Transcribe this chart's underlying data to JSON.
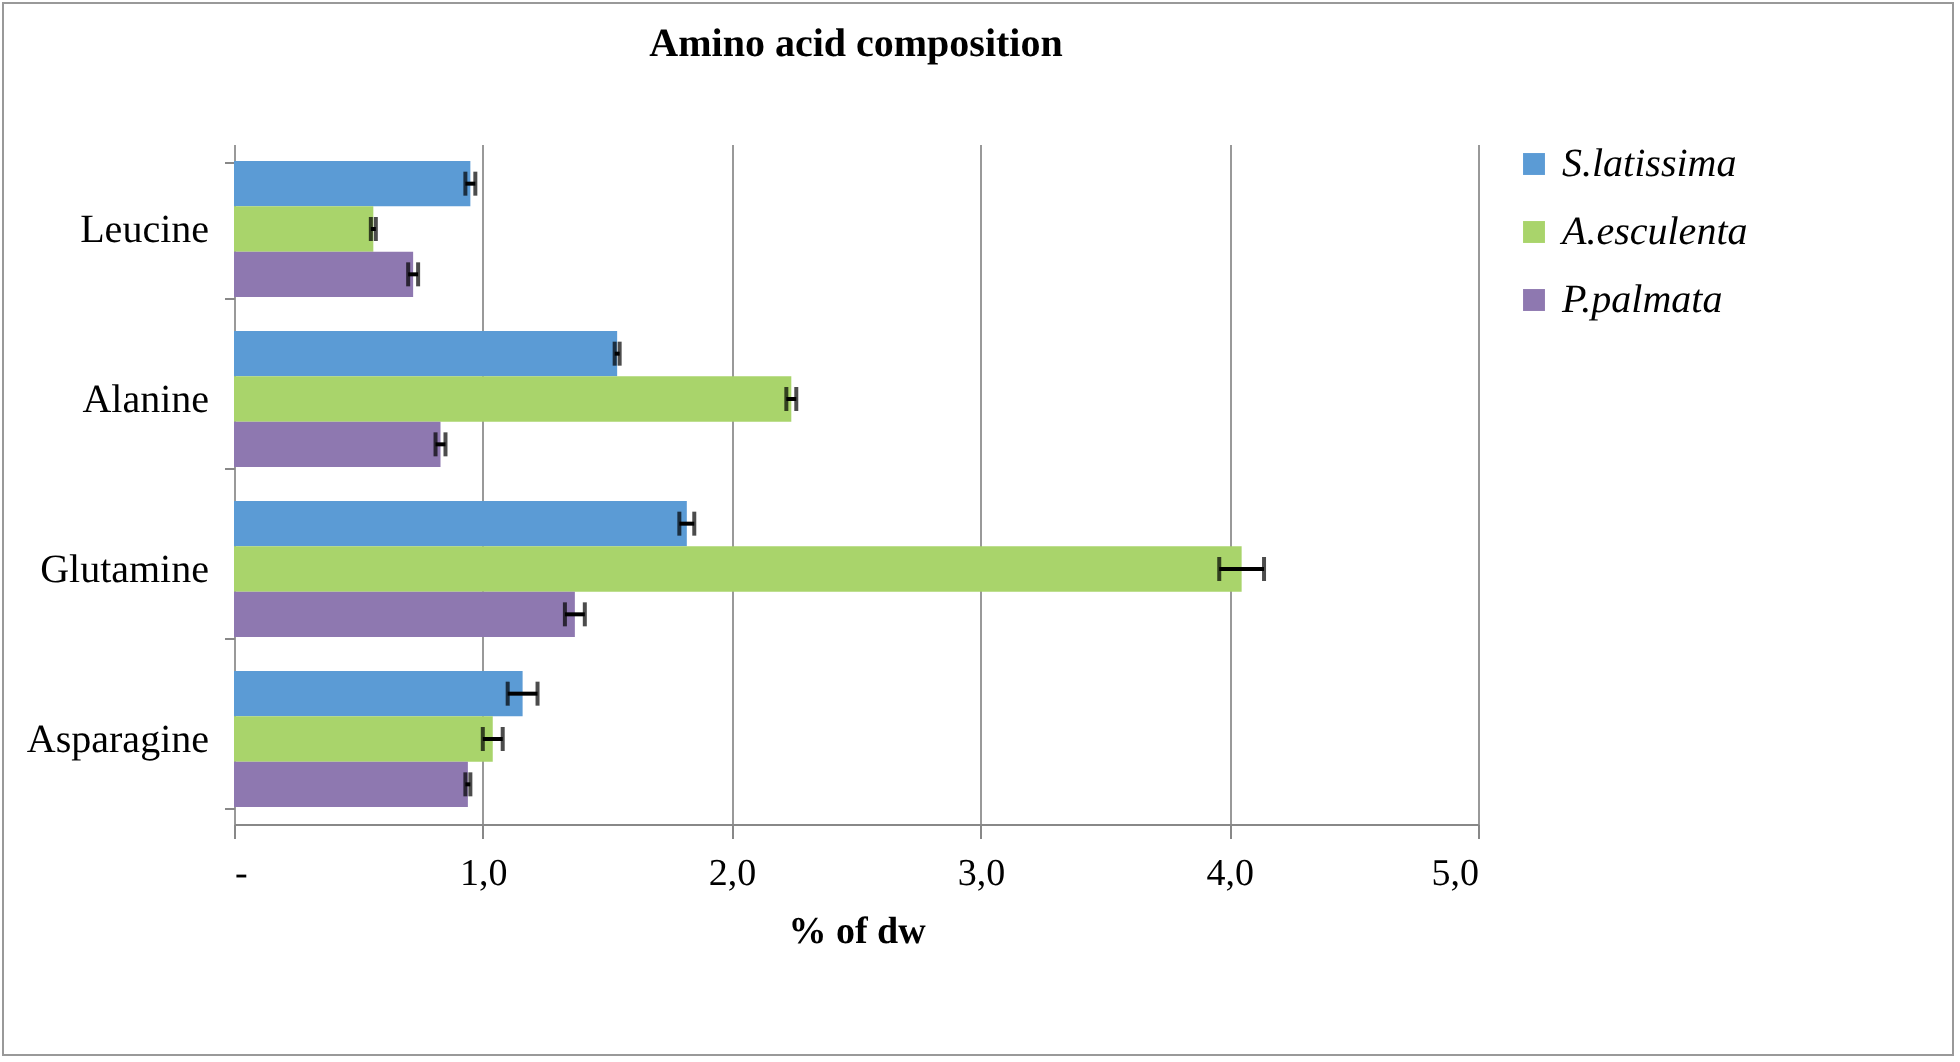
{
  "chart_data": {
    "type": "bar",
    "orientation": "horizontal",
    "title": "Amino acid composition",
    "xlabel": "% of dw",
    "categories": [
      "Leucine",
      "Alanine",
      "Glutamine",
      "Asparagine"
    ],
    "series": [
      {
        "name": "S.latissima",
        "color": "#5b9bd5",
        "values": [
          0.95,
          1.54,
          1.82,
          1.16
        ],
        "errors": [
          0.02,
          0.01,
          0.03,
          0.06
        ]
      },
      {
        "name": "A.esculenta",
        "color": "#a9d46b",
        "values": [
          0.56,
          2.24,
          4.05,
          1.04
        ],
        "errors": [
          0.01,
          0.02,
          0.09,
          0.04
        ]
      },
      {
        "name": "P.palmata",
        "color": "#8e78b0",
        "values": [
          0.72,
          0.83,
          1.37,
          0.94
        ],
        "errors": [
          0.02,
          0.02,
          0.04,
          0.01
        ]
      }
    ],
    "xlim": [
      0,
      5
    ],
    "xticks": [
      {
        "value": 0,
        "label": "-"
      },
      {
        "value": 1,
        "label": "1,0"
      },
      {
        "value": 2,
        "label": "2,0"
      },
      {
        "value": 3,
        "label": "3,0"
      },
      {
        "value": 4,
        "label": "4,0"
      },
      {
        "value": 5,
        "label": "5,0"
      }
    ],
    "grid": "x",
    "legend": "right"
  }
}
